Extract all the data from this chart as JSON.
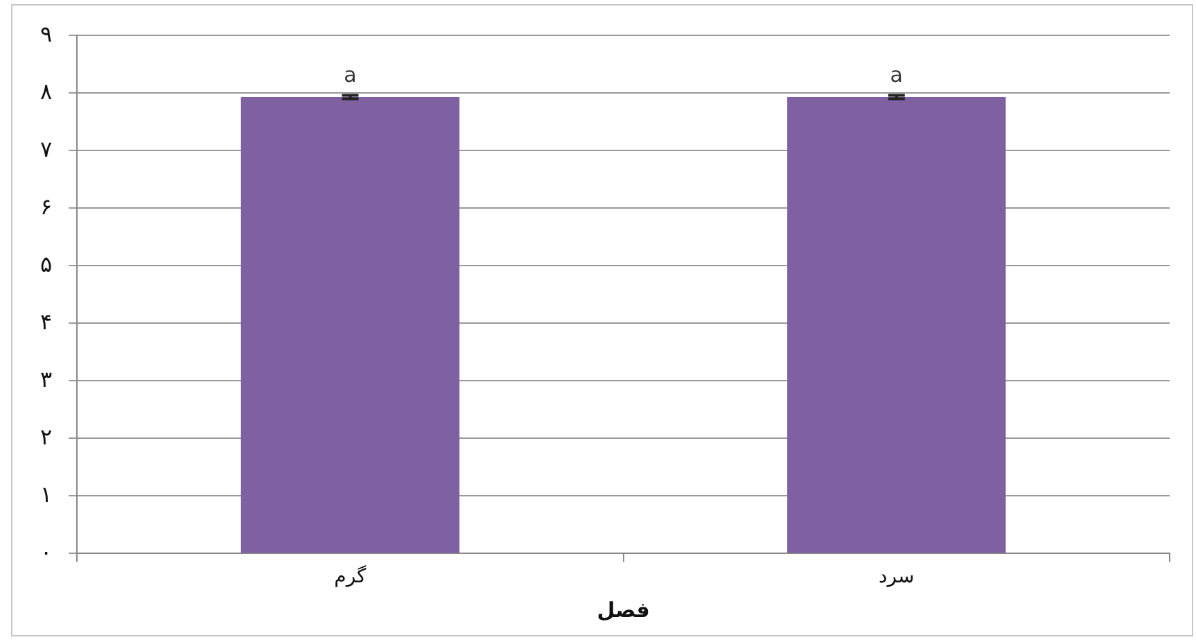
{
  "chart_data": {
    "type": "bar",
    "xlabel": "فصل",
    "categories": [
      "گرم",
      "سرد"
    ],
    "values": [
      7.93,
      7.93
    ],
    "errors": [
      0.03,
      0.03
    ],
    "color": "#7f60a0",
    "ylim": [
      0,
      9
    ],
    "yticks": [
      {
        "value": 0,
        "label": "۰"
      },
      {
        "value": 1,
        "label": "۱"
      },
      {
        "value": 2,
        "label": "۲"
      },
      {
        "value": 3,
        "label": "۳"
      },
      {
        "value": 4,
        "label": "۴"
      },
      {
        "value": 5,
        "label": "۵"
      },
      {
        "value": 6,
        "label": "۶"
      },
      {
        "value": 7,
        "label": "۷"
      },
      {
        "value": 8,
        "label": "۸"
      },
      {
        "value": 9,
        "label": "۹"
      }
    ],
    "grid": "y",
    "legend": false,
    "annotations": [
      {
        "text": "a",
        "x": "گرم",
        "y": 7.96
      },
      {
        "text": "a",
        "x": "سرد",
        "y": 7.96
      }
    ]
  }
}
